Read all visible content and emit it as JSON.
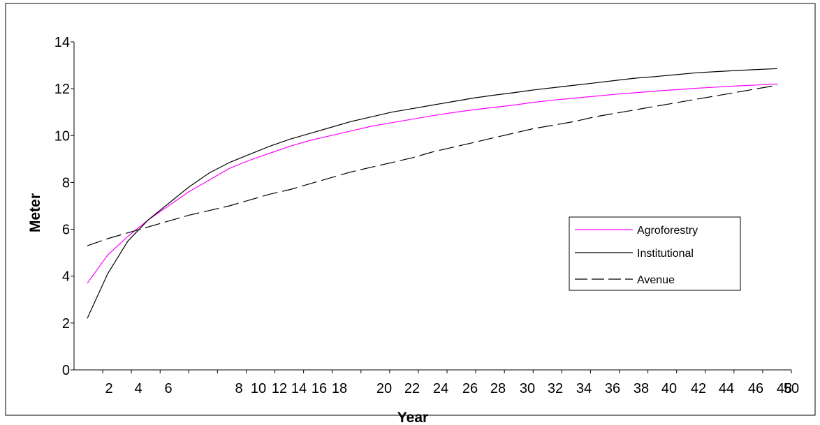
{
  "chart_data": {
    "type": "line",
    "title": "",
    "xlabel": "Year",
    "ylabel": "Meter",
    "ylim": [
      0,
      14
    ],
    "yticks": [
      "0",
      "2",
      "4",
      "6",
      "8",
      "10",
      "12",
      "14"
    ],
    "xticks": [
      {
        "value": 2,
        "label": "2"
      },
      {
        "value": 4,
        "label": "4"
      },
      {
        "value": 6,
        "label": "6"
      },
      {
        "value": 8,
        "label": "8"
      },
      {
        "value": 10,
        "label": "10"
      },
      {
        "value": 12,
        "label": "12"
      },
      {
        "value": 14,
        "label": "14"
      },
      {
        "value": 16,
        "label": "16"
      },
      {
        "value": 18,
        "label": "18"
      },
      {
        "value": 20,
        "label": "20"
      },
      {
        "value": 22,
        "label": "22"
      },
      {
        "value": 24,
        "label": "24"
      },
      {
        "value": 26,
        "label": "26"
      },
      {
        "value": 28,
        "label": "28"
      },
      {
        "value": 30,
        "label": "30"
      },
      {
        "value": 32,
        "label": "32"
      },
      {
        "value": 34,
        "label": "34"
      },
      {
        "value": 36,
        "label": "36"
      },
      {
        "value": 38,
        "label": "38"
      },
      {
        "value": 40,
        "label": "40"
      },
      {
        "value": 42,
        "label": "42"
      },
      {
        "value": 44,
        "label": "44"
      },
      {
        "value": 46,
        "label": "46"
      },
      {
        "value": 48,
        "label": "48"
      },
      {
        "value": 50,
        "label": "50"
      }
    ],
    "grid": false,
    "legend_position": "right",
    "series": [
      {
        "name": "Agroforestry",
        "color": "#ff00ff",
        "style": "solid",
        "points": [
          [
            1,
            3.7
          ],
          [
            2,
            4.9
          ],
          [
            3,
            5.7
          ],
          [
            4,
            6.4
          ],
          [
            5,
            7.0
          ],
          [
            6,
            7.6
          ],
          [
            7,
            8.1
          ],
          [
            8,
            8.6
          ],
          [
            9,
            8.95
          ],
          [
            10,
            9.25
          ],
          [
            11,
            9.55
          ],
          [
            12,
            9.8
          ],
          [
            13,
            10.0
          ],
          [
            14,
            10.2
          ],
          [
            15,
            10.4
          ],
          [
            16,
            10.55
          ],
          [
            17,
            10.7
          ],
          [
            18,
            10.85
          ],
          [
            19,
            10.98
          ],
          [
            20,
            11.1
          ],
          [
            21,
            11.2
          ],
          [
            22,
            11.3
          ],
          [
            23,
            11.42
          ],
          [
            24,
            11.52
          ],
          [
            25,
            11.6
          ],
          [
            26,
            11.68
          ],
          [
            27,
            11.76
          ],
          [
            28,
            11.83
          ],
          [
            29,
            11.9
          ],
          [
            30,
            11.96
          ],
          [
            31,
            12.02
          ],
          [
            32,
            12.07
          ],
          [
            33,
            12.12
          ],
          [
            34,
            12.16
          ],
          [
            35,
            12.2
          ]
        ]
      },
      {
        "name": "Institutional",
        "color": "#000000",
        "style": "solid",
        "points": [
          [
            1,
            2.2
          ],
          [
            2,
            4.1
          ],
          [
            3,
            5.5
          ],
          [
            4,
            6.4
          ],
          [
            5,
            7.1
          ],
          [
            6,
            7.8
          ],
          [
            7,
            8.4
          ],
          [
            8,
            8.85
          ],
          [
            9,
            9.2
          ],
          [
            10,
            9.55
          ],
          [
            11,
            9.85
          ],
          [
            12,
            10.1
          ],
          [
            13,
            10.35
          ],
          [
            14,
            10.6
          ],
          [
            15,
            10.8
          ],
          [
            16,
            11.0
          ],
          [
            17,
            11.15
          ],
          [
            18,
            11.3
          ],
          [
            19,
            11.45
          ],
          [
            20,
            11.6
          ],
          [
            21,
            11.72
          ],
          [
            22,
            11.83
          ],
          [
            23,
            11.95
          ],
          [
            24,
            12.05
          ],
          [
            25,
            12.15
          ],
          [
            26,
            12.25
          ],
          [
            27,
            12.35
          ],
          [
            28,
            12.45
          ],
          [
            29,
            12.52
          ],
          [
            30,
            12.6
          ],
          [
            31,
            12.68
          ],
          [
            32,
            12.73
          ],
          [
            33,
            12.78
          ],
          [
            34,
            12.82
          ],
          [
            35,
            12.86
          ]
        ]
      },
      {
        "name": "Avenue",
        "color": "#000000",
        "style": "dashed",
        "points": [
          [
            1,
            5.3
          ],
          [
            2,
            5.6
          ],
          [
            3,
            5.85
          ],
          [
            4,
            6.1
          ],
          [
            5,
            6.35
          ],
          [
            6,
            6.6
          ],
          [
            7,
            6.8
          ],
          [
            8,
            7.0
          ],
          [
            9,
            7.25
          ],
          [
            10,
            7.5
          ],
          [
            11,
            7.7
          ],
          [
            12,
            7.95
          ],
          [
            13,
            8.2
          ],
          [
            14,
            8.45
          ],
          [
            15,
            8.65
          ],
          [
            16,
            8.85
          ],
          [
            17,
            9.05
          ],
          [
            18,
            9.3
          ],
          [
            19,
            9.5
          ],
          [
            20,
            9.7
          ],
          [
            21,
            9.9
          ],
          [
            22,
            10.1
          ],
          [
            23,
            10.3
          ],
          [
            24,
            10.45
          ],
          [
            25,
            10.6
          ],
          [
            26,
            10.8
          ],
          [
            27,
            10.95
          ],
          [
            28,
            11.1
          ],
          [
            29,
            11.25
          ],
          [
            30,
            11.4
          ],
          [
            31,
            11.55
          ],
          [
            32,
            11.7
          ],
          [
            33,
            11.85
          ],
          [
            34,
            12.0
          ],
          [
            35,
            12.15
          ]
        ]
      }
    ]
  }
}
